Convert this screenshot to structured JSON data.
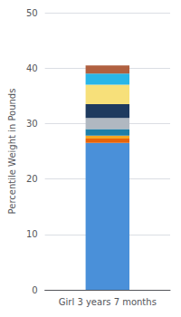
{
  "chart_data": {
    "type": "bar",
    "stacked": true,
    "categories": [
      "Girl 3 years 7 months"
    ],
    "series": [
      {
        "color": "#4a90d9",
        "values": [
          26.5
        ]
      },
      {
        "color": "#e8640a",
        "values": [
          0.8
        ]
      },
      {
        "color": "#f5a623",
        "values": [
          0.5
        ]
      },
      {
        "color": "#1e7ea8",
        "values": [
          1.2
        ]
      },
      {
        "color": "#b0b8c1",
        "values": [
          2.0
        ]
      },
      {
        "color": "#1e3a5f",
        "values": [
          2.5
        ]
      },
      {
        "color": "#f7e07a",
        "values": [
          3.5
        ]
      },
      {
        "color": "#29b6e8",
        "values": [
          2.0
        ]
      },
      {
        "color": "#b06040",
        "values": [
          1.5
        ]
      }
    ],
    "ylabel": "Percentile Weight in Pounds",
    "ylim": [
      0,
      50
    ],
    "yticks": [
      0,
      10,
      20,
      30,
      40,
      50
    ],
    "grid": true
  }
}
